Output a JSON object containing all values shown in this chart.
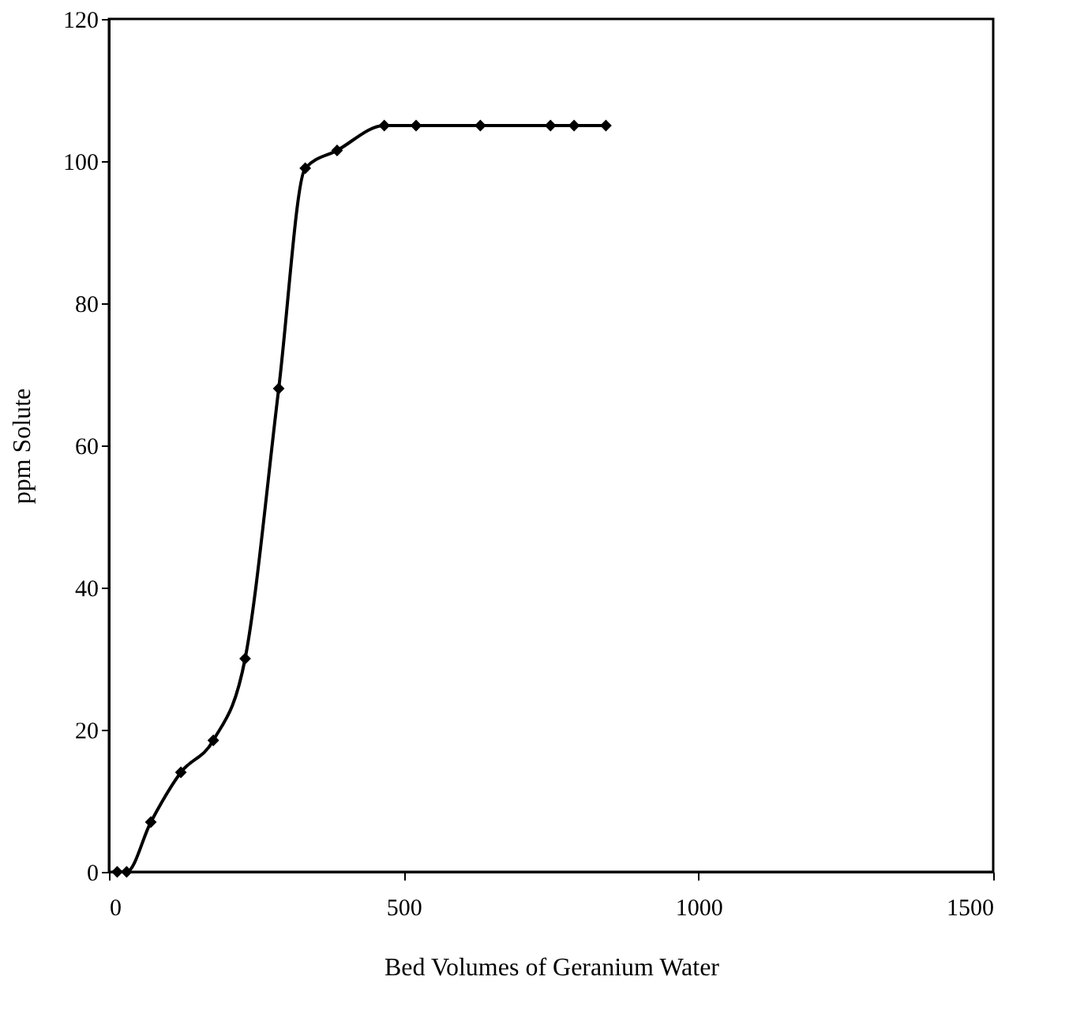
{
  "chart_data": {
    "type": "line",
    "xlabel": "Bed Volumes of Geranium Water",
    "ylabel": "ppm Solute",
    "x": [
      14,
      30,
      71,
      122,
      177,
      231,
      288,
      333,
      387,
      467,
      521,
      630,
      749,
      789,
      843
    ],
    "series": [
      {
        "color": "#000000",
        "values": [
          0,
          0,
          7,
          14,
          18.5,
          30,
          68,
          99,
          101.5,
          105,
          105,
          105,
          105,
          105,
          105
        ]
      }
    ],
    "xlim": [
      0,
      1500
    ],
    "xticks": [
      0,
      500,
      1000,
      1500
    ],
    "ylim": [
      0,
      120
    ],
    "yticks": [
      0,
      20,
      40,
      60,
      80,
      100,
      120
    ],
    "grid": false,
    "legend": false,
    "marker": "diamond",
    "line_style": "solid"
  }
}
